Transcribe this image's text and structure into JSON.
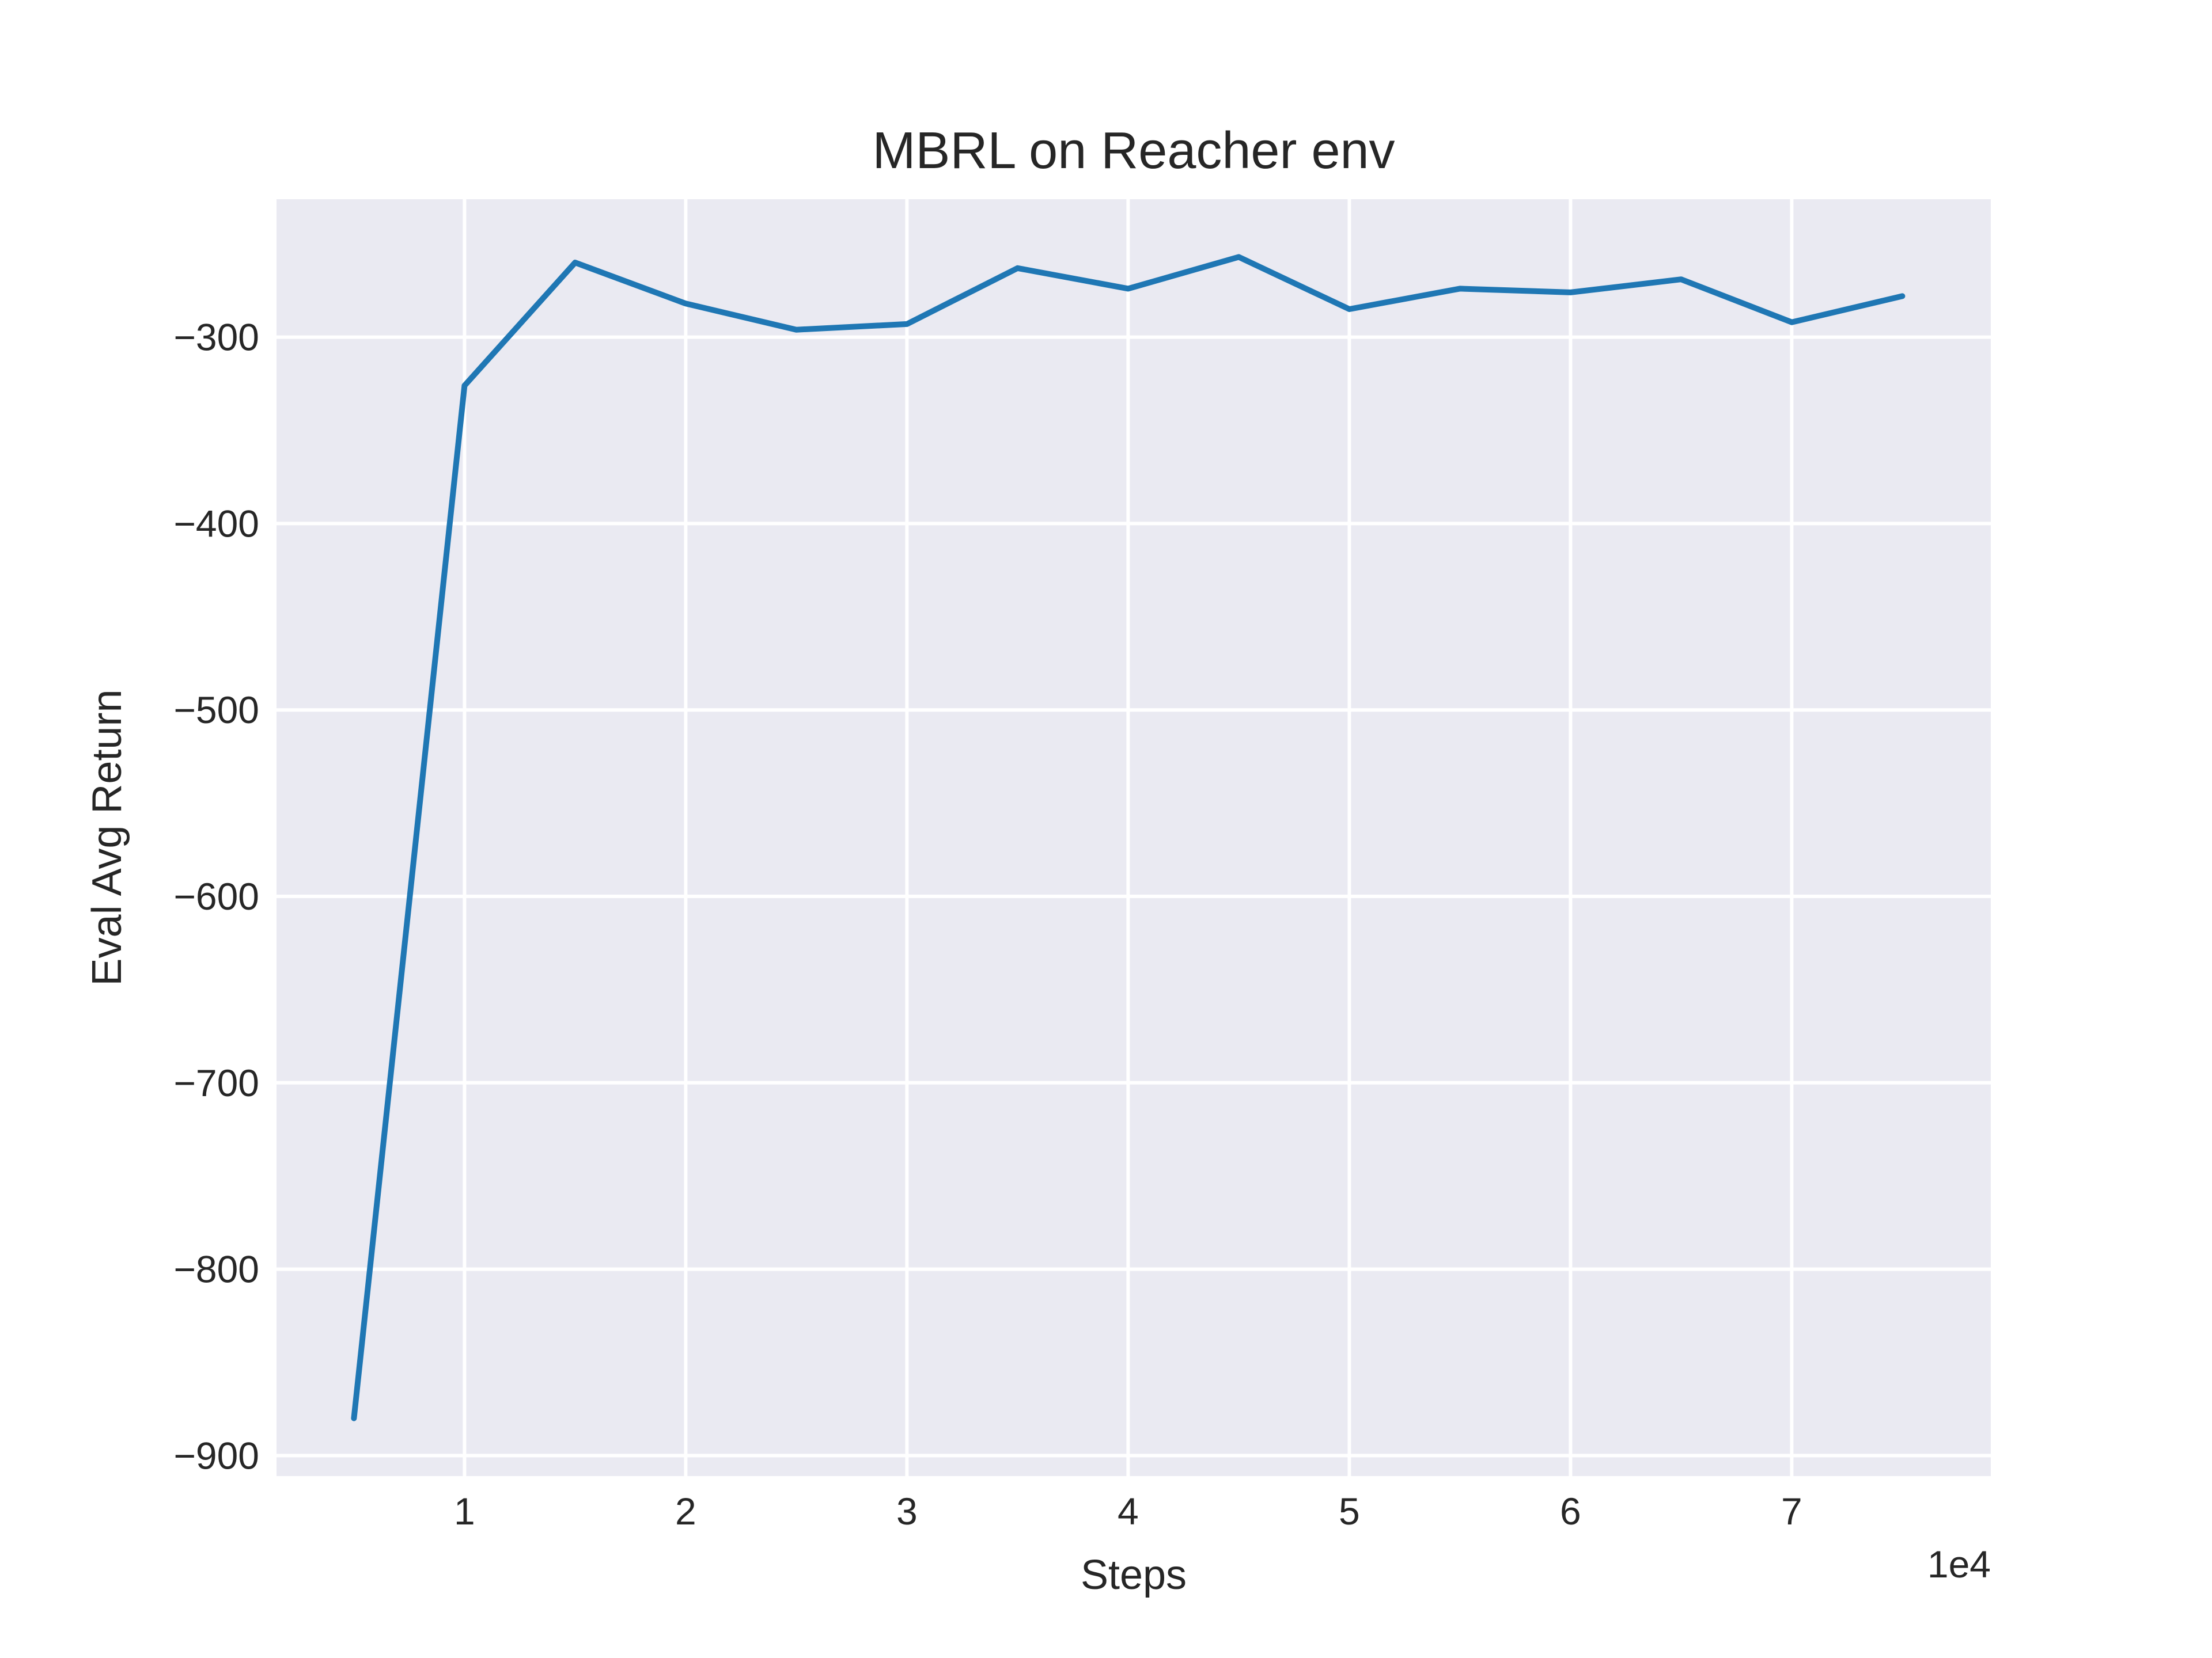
{
  "chart_data": {
    "type": "line",
    "title": "MBRL on Reacher env",
    "xlabel": "Steps",
    "ylabel": "Eval Avg Return",
    "x_offset_text": "1e4",
    "x_scale_factor": 10000,
    "xlim": [
      1500,
      79000
    ],
    "ylim": [
      -911,
      -226
    ],
    "xticks": [
      10000,
      20000,
      30000,
      40000,
      50000,
      60000,
      70000
    ],
    "xtick_labels": [
      "1",
      "2",
      "3",
      "4",
      "5",
      "6",
      "7"
    ],
    "yticks": [
      -900,
      -800,
      -700,
      -600,
      -500,
      -400,
      -300
    ],
    "ytick_labels": [
      "−900",
      "−800",
      "−700",
      "−600",
      "−500",
      "−400",
      "−300"
    ],
    "grid": true,
    "background_color": "#eaeaf2",
    "series": [
      {
        "color": "#1f77b4",
        "x": [
          5000,
          10000,
          15000,
          20000,
          25000,
          30000,
          35000,
          40000,
          45000,
          50000,
          55000,
          60000,
          65000,
          70000,
          75000
        ],
        "y": [
          -880,
          -326,
          -260,
          -282,
          -296,
          -293,
          -263,
          -274,
          -257,
          -285,
          -274,
          -276,
          -269,
          -292,
          -278
        ]
      }
    ]
  }
}
